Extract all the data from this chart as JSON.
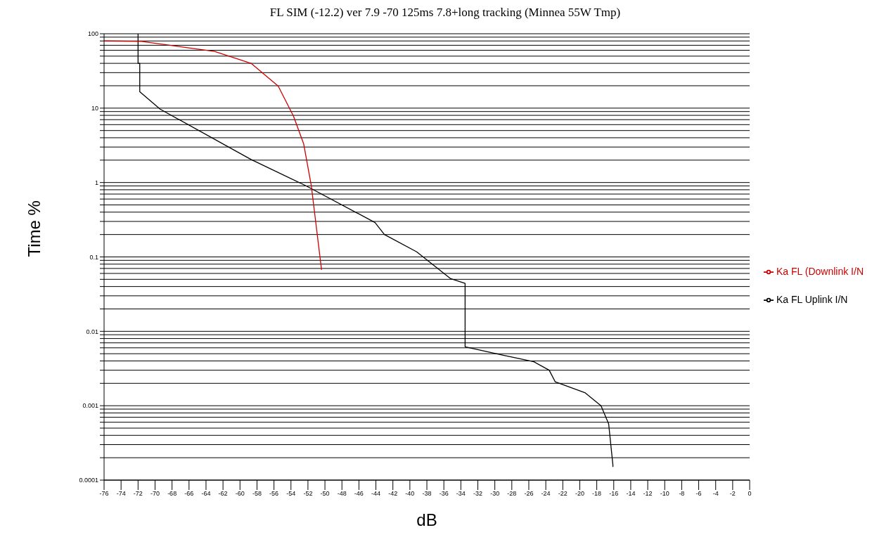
{
  "chart_data": {
    "type": "line",
    "title": "FL SIM (-12.2) ver 7.9 -70 125ms 7.8+long tracking (Minnea 55W Tmp)",
    "xlabel": "dB",
    "ylabel": "Time %",
    "log": "y",
    "grid": "y",
    "legend": "right",
    "marker": "none",
    "line_style": "solid",
    "xlim": [
      -76,
      0
    ],
    "xticks": [
      -76,
      -74,
      -72,
      -70,
      -68,
      -66,
      -64,
      -62,
      -60,
      -58,
      -56,
      -54,
      -52,
      -50,
      -48,
      -46,
      -44,
      -42,
      -40,
      -38,
      -36,
      -34,
      -32,
      -30,
      -28,
      -26,
      -24,
      -22,
      -20,
      -18,
      -16,
      -14,
      -12,
      -10,
      -8,
      -6,
      -4,
      -2,
      0
    ],
    "ylim": [
      0.0001,
      100
    ],
    "yticks": [
      0.0001,
      {
        "value": 0.0002,
        "label": null
      },
      {
        "value": 0.0003,
        "label": null
      },
      {
        "value": 0.0004,
        "label": null
      },
      {
        "value": 0.0005,
        "label": null
      },
      {
        "value": 0.0006,
        "label": null
      },
      {
        "value": 0.0007,
        "label": null
      },
      {
        "value": 0.0008,
        "label": null
      },
      {
        "value": 0.0009,
        "label": null
      },
      0.001,
      {
        "value": 0.002,
        "label": null
      },
      {
        "value": 0.003,
        "label": null
      },
      {
        "value": 0.004,
        "label": null
      },
      {
        "value": 0.005,
        "label": null
      },
      {
        "value": 0.006,
        "label": null
      },
      {
        "value": 0.007,
        "label": null
      },
      {
        "value": 0.008,
        "label": null
      },
      {
        "value": 0.009,
        "label": null
      },
      0.01,
      {
        "value": 0.02,
        "label": null
      },
      {
        "value": 0.03,
        "label": null
      },
      {
        "value": 0.04,
        "label": null
      },
      {
        "value": 0.05,
        "label": null
      },
      {
        "value": 0.06,
        "label": null
      },
      {
        "value": 0.07,
        "label": null
      },
      {
        "value": 0.08,
        "label": null
      },
      {
        "value": 0.09,
        "label": null
      },
      0.1,
      {
        "value": 0.2,
        "label": null
      },
      {
        "value": 0.3,
        "label": null
      },
      {
        "value": 0.4,
        "label": null
      },
      {
        "value": 0.5,
        "label": null
      },
      {
        "value": 0.6,
        "label": null
      },
      {
        "value": 0.7,
        "label": null
      },
      {
        "value": 0.8,
        "label": null
      },
      {
        "value": 0.9,
        "label": null
      },
      1,
      {
        "value": 2,
        "label": null
      },
      {
        "value": 3,
        "label": null
      },
      {
        "value": 4,
        "label": null
      },
      {
        "value": 5,
        "label": null
      },
      {
        "value": 6,
        "label": null
      },
      {
        "value": 7,
        "label": null
      },
      {
        "value": 8,
        "label": null
      },
      {
        "value": 9,
        "label": null
      },
      10,
      {
        "value": 20,
        "label": null
      },
      {
        "value": 30,
        "label": null
      },
      {
        "value": 40,
        "label": null
      },
      {
        "value": 50,
        "label": null
      },
      {
        "value": 60,
        "label": null
      },
      {
        "value": 70,
        "label": null
      },
      {
        "value": 80,
        "label": null
      },
      {
        "value": 90,
        "label": null
      },
      100
    ],
    "series": [
      {
        "name": "Ka FL Uplink I/N",
        "color": "#000000",
        "x": [
          -72,
          -72,
          -71.8,
          -71.8,
          -69.4,
          -58.7,
          -52.2,
          -44.1,
          -43,
          -39.2,
          -35.2,
          -33.5,
          -33.5,
          -29.1,
          -25.4,
          -23.6,
          -22.9,
          -19.4,
          -17.5,
          -16.6,
          -16.1,
          -16.1
        ],
        "values": [
          100,
          40,
          40,
          16.6,
          9.7,
          2.04,
          0.9,
          0.29,
          0.2,
          0.117,
          0.051,
          0.044,
          0.0062,
          0.0048,
          0.0039,
          0.003,
          0.0021,
          0.0015,
          0.001,
          0.00057,
          0.00016,
          0.00015
        ]
      },
      {
        "name": "Ka FL (Downlink I/N",
        "color": "#cc0000",
        "x": [
          -76,
          -71.6,
          -63,
          -58.7,
          -55.5,
          -53.7,
          -52.5,
          -51.6,
          -51.1,
          -50.4
        ],
        "values": [
          80,
          79,
          58,
          40,
          19.8,
          7.8,
          3.3,
          0.9,
          0.305,
          0.067
        ]
      }
    ]
  }
}
